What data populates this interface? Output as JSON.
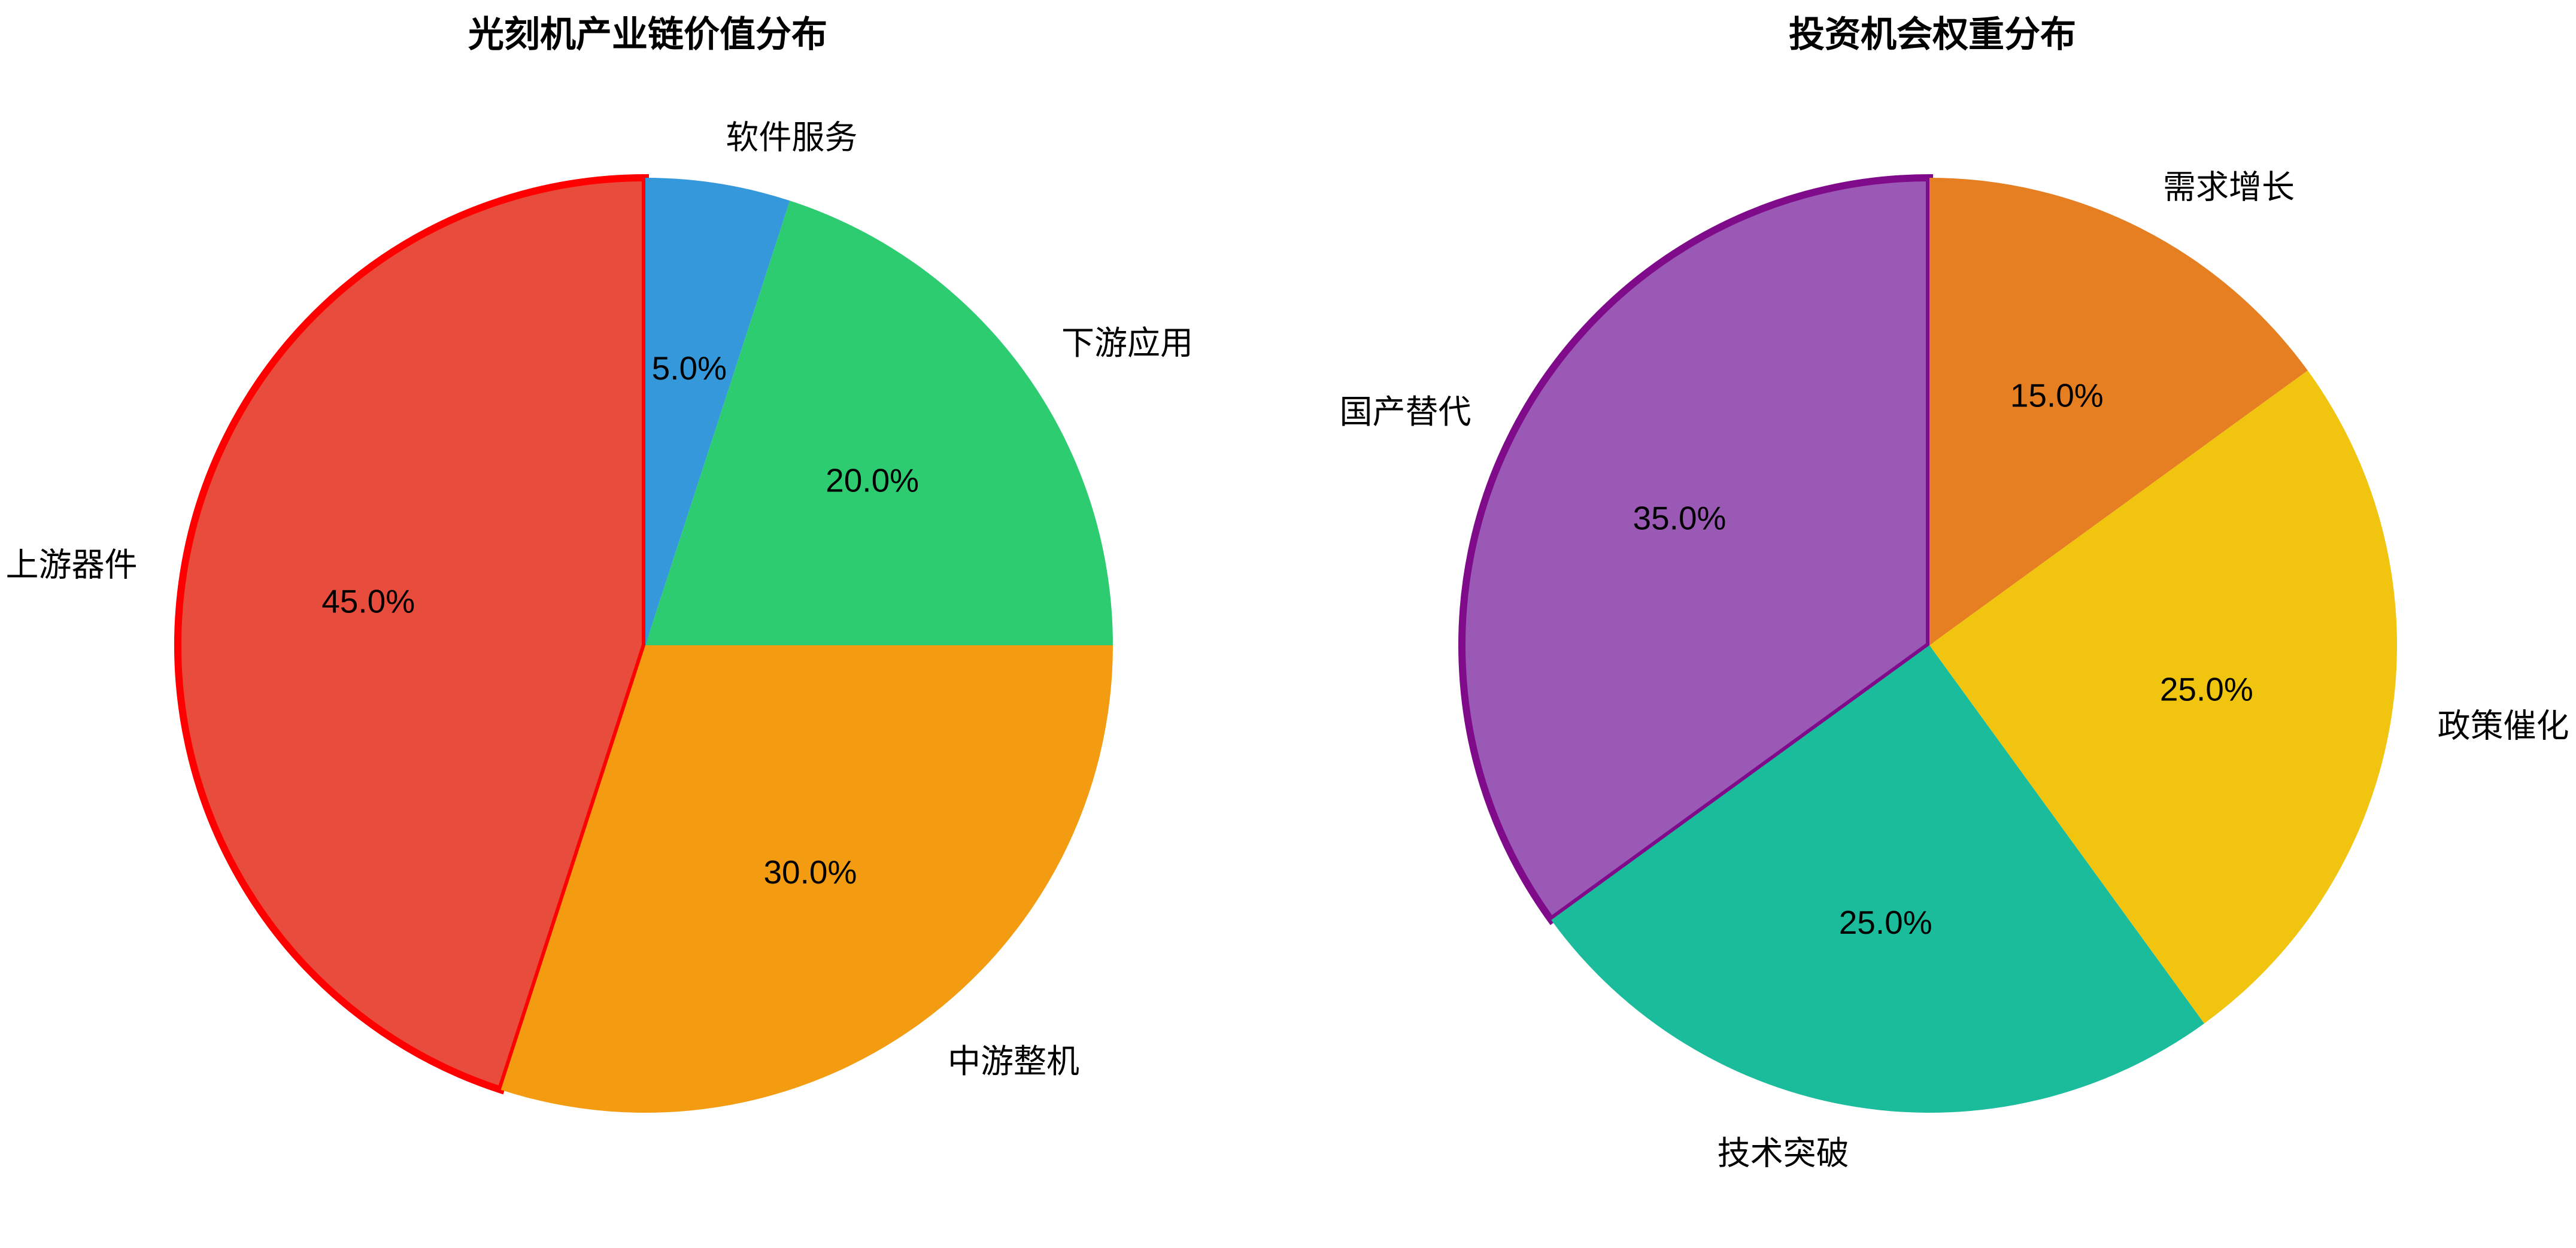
{
  "background_color": "#ffffff",
  "chart_data": [
    {
      "type": "pie",
      "title": "光刻机产业链价值分布",
      "labels": [
        "上游器件",
        "中游整机",
        "下游应用",
        "软件服务"
      ],
      "values": [
        45.0,
        30.0,
        20.0,
        5.0
      ],
      "pct_labels": [
        "45.0%",
        "30.0%",
        "20.0%",
        "5.0%"
      ],
      "colors": [
        "#e74c3c",
        "#f39c12",
        "#2ecc71",
        "#3498db"
      ],
      "edge_colors": [
        "#ff0000",
        null,
        null,
        null
      ],
      "start_angle": 90,
      "direction": "counterclockwise",
      "label_distance": 1.1,
      "pct_distance": 0.6,
      "legend": "none"
    },
    {
      "type": "pie",
      "title": "投资机会权重分布",
      "labels": [
        "国产替代",
        "技术突破",
        "政策催化",
        "需求增长"
      ],
      "values": [
        35.0,
        25.0,
        25.0,
        15.0
      ],
      "pct_labels": [
        "35.0%",
        "25.0%",
        "25.0%",
        "15.0%"
      ],
      "colors": [
        "#9b59b6",
        "#1abc9c",
        "#f1c40f",
        "#e67e22"
      ],
      "edge_colors": [
        "#800b8a",
        null,
        null,
        null
      ],
      "start_angle": 90,
      "direction": "counterclockwise",
      "label_distance": 1.1,
      "pct_distance": 0.6,
      "legend": "none"
    }
  ]
}
